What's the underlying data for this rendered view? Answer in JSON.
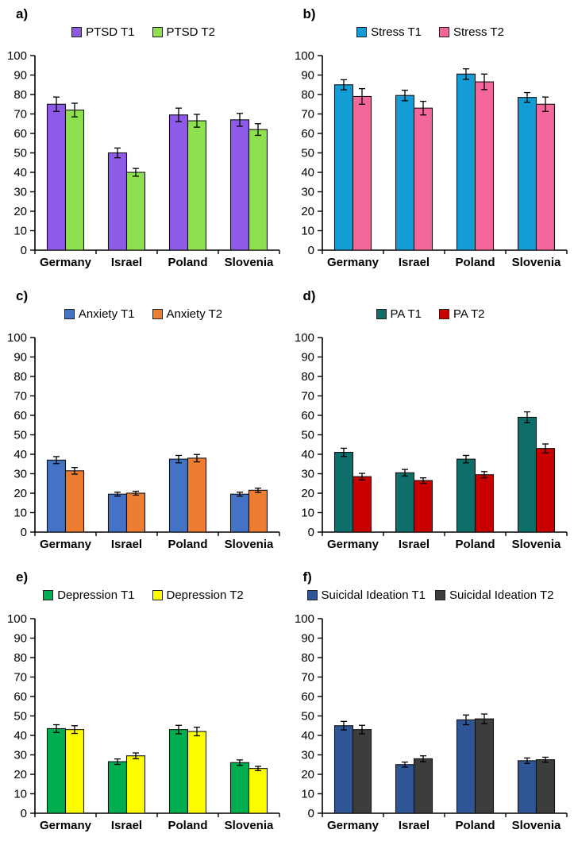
{
  "figure": {
    "background": "#ffffff",
    "columns": 2,
    "rows": 3
  },
  "style": {
    "bar_border_color": "#111111",
    "error_bar_color": "#000000",
    "axis_color": "#000000"
  },
  "chart_data": [
    {
      "panel_label": "a)",
      "type": "bar",
      "categories": [
        "Germany",
        "Israel",
        "Poland",
        "Slovenia"
      ],
      "series": [
        {
          "name": "PTSD T1",
          "color": "#8D5BE8",
          "values": [
            75,
            50,
            69.5,
            67
          ],
          "errors": [
            3.7,
            2.5,
            3.5,
            3.3
          ]
        },
        {
          "name": "PTSD T2",
          "color": "#8FE04F",
          "values": [
            72,
            40,
            66.5,
            62
          ],
          "errors": [
            3.5,
            2.0,
            3.3,
            3.0
          ]
        }
      ],
      "ylim": [
        0,
        100
      ],
      "ytick_step": 10,
      "grid": false,
      "legend_position": "top-center"
    },
    {
      "panel_label": "b)",
      "type": "bar",
      "categories": [
        "Germany",
        "Israel",
        "Poland",
        "Slovenia"
      ],
      "series": [
        {
          "name": "Stress T1",
          "color": "#149CD4",
          "values": [
            85,
            79.5,
            90.5,
            78.5
          ],
          "errors": [
            2.6,
            2.7,
            2.7,
            2.5
          ]
        },
        {
          "name": "Stress T2",
          "color": "#F4679D",
          "values": [
            79,
            73,
            86.5,
            75
          ],
          "errors": [
            4.0,
            3.5,
            4.0,
            3.7
          ]
        }
      ],
      "ylim": [
        0,
        100
      ],
      "ytick_step": 10,
      "grid": false,
      "legend_position": "top-center"
    },
    {
      "panel_label": "c)",
      "type": "bar",
      "categories": [
        "Germany",
        "Israel",
        "Poland",
        "Slovenia"
      ],
      "series": [
        {
          "name": "Anxiety T1",
          "color": "#4472C4",
          "values": [
            37,
            19.5,
            37.5,
            19.5
          ],
          "errors": [
            1.8,
            1.0,
            1.9,
            1.0
          ]
        },
        {
          "name": "Anxiety T2",
          "color": "#ED7D31",
          "values": [
            31.5,
            20,
            38,
            21.5
          ],
          "errors": [
            1.7,
            1.0,
            1.9,
            1.1
          ]
        }
      ],
      "ylim": [
        0,
        100
      ],
      "ytick_step": 10,
      "grid": false,
      "legend_position": "top-center"
    },
    {
      "panel_label": "d)",
      "type": "bar",
      "categories": [
        "Germany",
        "Israel",
        "Poland",
        "Slovenia"
      ],
      "series": [
        {
          "name": "PA T1",
          "color": "#0E6E6A",
          "values": [
            41,
            30.5,
            37.5,
            59
          ],
          "errors": [
            2.1,
            1.7,
            1.9,
            2.8
          ]
        },
        {
          "name": "PA T2",
          "color": "#C80000",
          "values": [
            28.5,
            26.5,
            29.5,
            43
          ],
          "errors": [
            1.7,
            1.4,
            1.6,
            2.3
          ]
        }
      ],
      "ylim": [
        0,
        100
      ],
      "ytick_step": 10,
      "grid": false,
      "legend_position": "top-center"
    },
    {
      "panel_label": "e)",
      "type": "bar",
      "categories": [
        "Germany",
        "Israel",
        "Poland",
        "Slovenia"
      ],
      "series": [
        {
          "name": "Depression T1",
          "color": "#00AE4F",
          "values": [
            43.5,
            26.5,
            43,
            26
          ],
          "errors": [
            2.0,
            1.4,
            2.2,
            1.4
          ]
        },
        {
          "name": "Depression T2",
          "color": "#FDFD00",
          "values": [
            43,
            29.5,
            42,
            23
          ],
          "errors": [
            2.0,
            1.5,
            2.2,
            1.1
          ]
        }
      ],
      "ylim": [
        0,
        100
      ],
      "ytick_step": 10,
      "grid": false,
      "legend_position": "top-center"
    },
    {
      "panel_label": "f)",
      "type": "bar",
      "categories": [
        "Germany",
        "Israel",
        "Poland",
        "Slovenia"
      ],
      "series": [
        {
          "name": "Suicidal Ideation T1",
          "color": "#2E5596",
          "values": [
            45,
            25,
            48,
            27
          ],
          "errors": [
            2.2,
            1.3,
            2.5,
            1.4
          ]
        },
        {
          "name": "Suicidal Ideation T2",
          "color": "#3D3D3D",
          "values": [
            43,
            28,
            48.5,
            27.5
          ],
          "errors": [
            2.2,
            1.5,
            2.5,
            1.3
          ]
        }
      ],
      "ylim": [
        0,
        100
      ],
      "ytick_step": 10,
      "grid": false,
      "legend_position": "top-center"
    }
  ]
}
